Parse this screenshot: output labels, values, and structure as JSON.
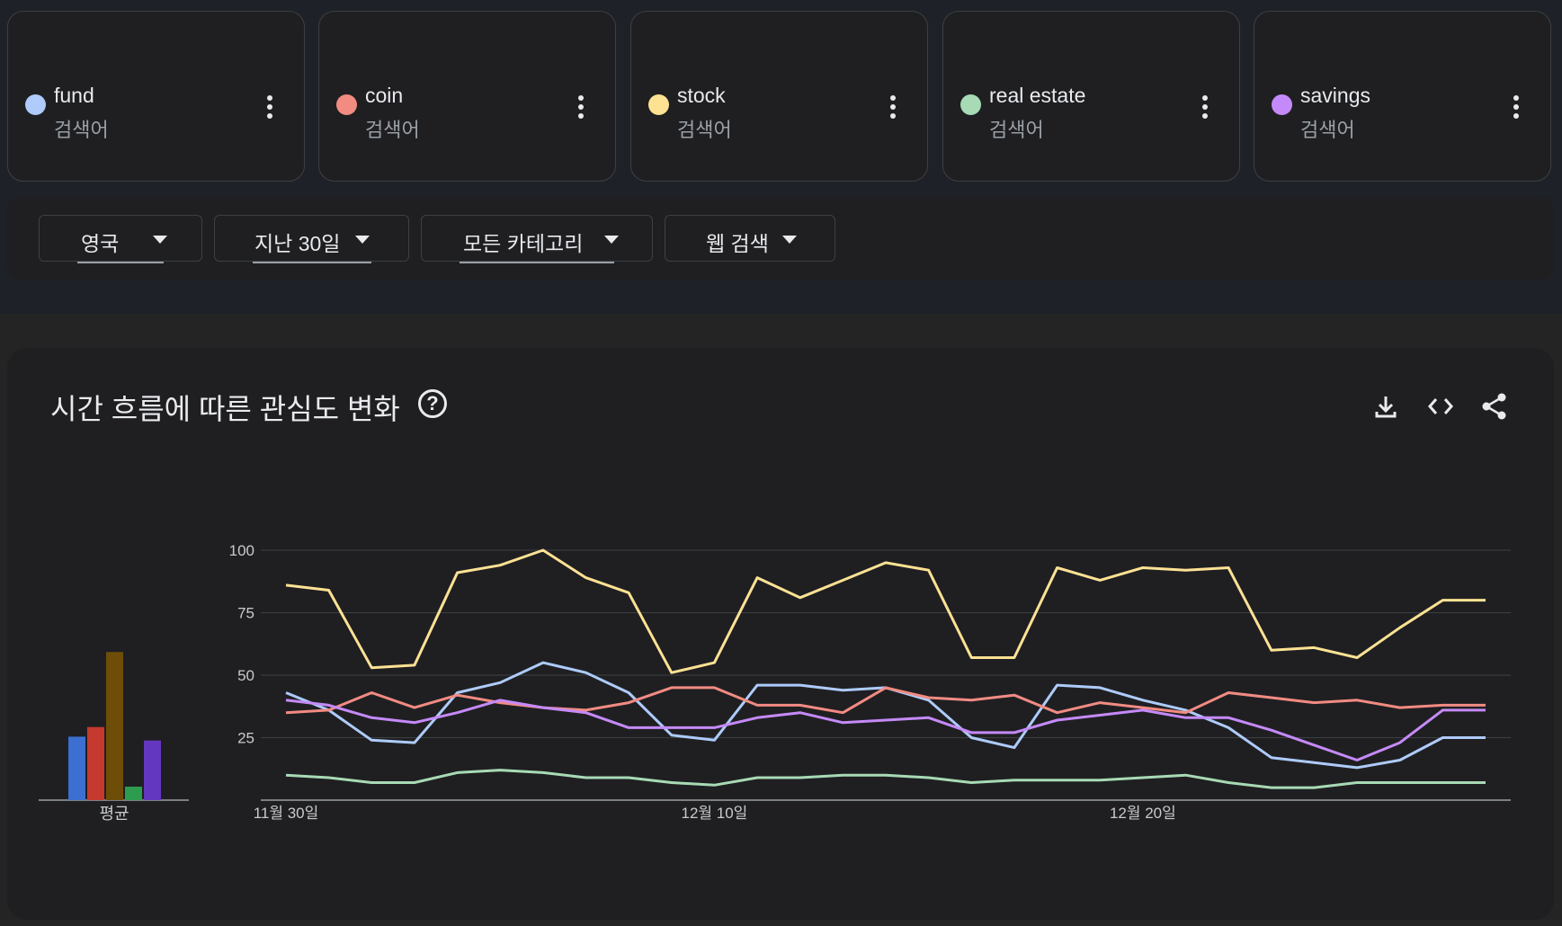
{
  "terms": [
    {
      "name": "fund",
      "type": "검색어",
      "color": "#aecbfa"
    },
    {
      "name": "coin",
      "type": "검색어",
      "color": "#f28b82"
    },
    {
      "name": "stock",
      "type": "검색어",
      "color": "#fde293"
    },
    {
      "name": "real estate",
      "type": "검색어",
      "color": "#a8dab5"
    },
    {
      "name": "savings",
      "type": "검색어",
      "color": "#c58af9"
    }
  ],
  "filters": {
    "region": "영국",
    "period": "지난 30일",
    "category": "모든 카테고리",
    "search_type": "웹 검색"
  },
  "chart_title": "시간 흐름에 따른 관심도 변화",
  "help_icon": "question-circle-icon",
  "actions": [
    "download-icon",
    "embed-code-icon",
    "share-icon"
  ],
  "chart_data": [
    {
      "type": "bar",
      "categories": [
        "평균"
      ],
      "series": [
        {
          "name": "fund",
          "values": [
            33
          ],
          "color": "#3d6fd1"
        },
        {
          "name": "coin",
          "values": [
            38
          ],
          "color": "#c5392e"
        },
        {
          "name": "stock",
          "values": [
            77
          ],
          "color": "#6e4d08"
        },
        {
          "name": "real estate",
          "values": [
            7
          ],
          "color": "#2e9c4f"
        },
        {
          "name": "savings",
          "values": [
            31
          ],
          "color": "#6437c0"
        }
      ],
      "ylim": [
        0,
        100
      ]
    },
    {
      "type": "line",
      "x": [
        "11월 30일",
        "12월 1일",
        "12월 2일",
        "12월 3일",
        "12월 4일",
        "12월 5일",
        "12월 6일",
        "12월 7일",
        "12월 8일",
        "12월 9일",
        "12월 10일",
        "12월 11일",
        "12월 12일",
        "12월 13일",
        "12월 14일",
        "12월 15일",
        "12월 16일",
        "12월 17일",
        "12월 18일",
        "12월 19일",
        "12월 20일",
        "12월 21일",
        "12월 22일",
        "12월 23일",
        "12월 24일",
        "12월 25일",
        "12월 26일",
        "12월 27일",
        "12월 28일"
      ],
      "x_ticks": [
        "11월 30일",
        "12월 10일",
        "12월 20일"
      ],
      "y_ticks": [
        25,
        50,
        75,
        100
      ],
      "ylim": [
        0,
        100
      ],
      "grid": true,
      "series": [
        {
          "name": "stock",
          "color": "#fde293",
          "values": [
            86,
            84,
            53,
            54,
            91,
            94,
            100,
            89,
            83,
            51,
            55,
            89,
            81,
            88,
            95,
            92,
            57,
            57,
            93,
            88,
            93,
            92,
            93,
            60,
            61,
            57,
            69,
            80,
            80
          ]
        },
        {
          "name": "fund",
          "color": "#aecbfa",
          "values": [
            43,
            36,
            24,
            23,
            43,
            47,
            55,
            51,
            43,
            26,
            24,
            46,
            46,
            44,
            45,
            40,
            25,
            21,
            46,
            45,
            40,
            36,
            29,
            17,
            15,
            13,
            16,
            25,
            25
          ]
        },
        {
          "name": "coin",
          "color": "#f28b82",
          "values": [
            35,
            36,
            43,
            37,
            42,
            39,
            37,
            36,
            39,
            45,
            45,
            38,
            38,
            35,
            45,
            41,
            40,
            42,
            35,
            39,
            37,
            35,
            43,
            41,
            39,
            40,
            37,
            38,
            38
          ]
        },
        {
          "name": "savings",
          "color": "#c58af9",
          "values": [
            40,
            38,
            33,
            31,
            35,
            40,
            37,
            35,
            29,
            29,
            29,
            33,
            35,
            31,
            32,
            33,
            27,
            27,
            32,
            34,
            36,
            33,
            33,
            28,
            22,
            16,
            23,
            36,
            36
          ]
        },
        {
          "name": "real estate",
          "color": "#a8dab5",
          "values": [
            10,
            9,
            7,
            7,
            11,
            12,
            11,
            9,
            9,
            7,
            6,
            9,
            9,
            10,
            10,
            9,
            7,
            8,
            8,
            8,
            9,
            10,
            7,
            5,
            5,
            7,
            7,
            7,
            7
          ]
        }
      ]
    }
  ]
}
